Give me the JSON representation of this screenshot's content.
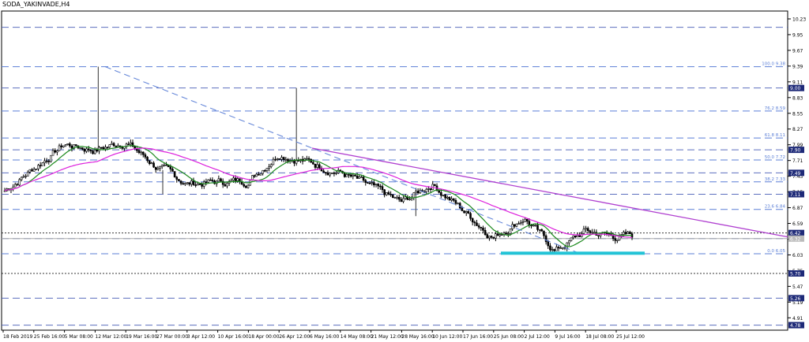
{
  "window_title": "SODA_YAKINVADE,H4",
  "chart_data": {
    "type": "candlestick",
    "symbol": "SODA_YAKINVADE",
    "timeframe": "H4",
    "ylim": [
      4.69,
      10.37
    ],
    "y_ticks": [
      "10.23",
      "9.95",
      "9.67",
      "9.39",
      "9.11",
      "8.83",
      "8.55",
      "8.27",
      "7.99",
      "7.71",
      "7.43",
      "7.15",
      "6.87",
      "6.59",
      "6.31",
      "6.03",
      "5.75",
      "5.47",
      "5.19",
      "4.91"
    ],
    "x_ticks": [
      "18 Feb 2019",
      "25 Feb 16:00",
      "5 Mar 08:00",
      "12 Mar 12:00",
      "19 Mar 16:00",
      "27 Mar 00:00",
      "3 Apr 12:00",
      "10 Apr 16:00",
      "18 Apr 00:00",
      "26 Apr 12:00",
      "6 May 16:00",
      "14 May 08:00",
      "21 May 12:00",
      "28 May 16:00",
      "10 Jun 12:00",
      "17 Jun 16:00",
      "25 Jun 08:00",
      "2 Jul 12:00",
      "9 Jul 16:00",
      "18 Jul 08:00",
      "25 Jul 12:00"
    ],
    "price_badges": [
      {
        "label": "9.00",
        "value": 9.0
      },
      {
        "label": "7.90",
        "value": 7.9
      },
      {
        "label": "7.49",
        "value": 7.49
      },
      {
        "label": "7.11",
        "value": 7.11
      },
      {
        "label": "6.42",
        "value": 6.42
      },
      {
        "label": "6.32",
        "value": 6.32
      },
      {
        "label": "5.70",
        "value": 5.7
      },
      {
        "label": "5.26",
        "value": 5.26
      },
      {
        "label": "4.78",
        "value": 4.78
      }
    ],
    "fibonacci": {
      "high": 9.38,
      "low": 6.05,
      "levels": [
        {
          "label": "100.0 9.38",
          "value": 9.38
        },
        {
          "label": "76.2 8.59",
          "value": 8.59
        },
        {
          "label": "61.8 8.11",
          "value": 8.11
        },
        {
          "label": "50.0 7.72",
          "value": 7.72
        },
        {
          "label": "38.2 7.33",
          "value": 7.33
        },
        {
          "label": "23.6 6.84",
          "value": 6.84
        },
        {
          "label": "0.0 6.05",
          "value": 6.05
        }
      ]
    },
    "horizontal_lines": [
      10.08,
      9.0,
      7.9,
      7.49,
      7.11,
      6.42,
      6.32,
      5.7,
      5.26,
      4.78
    ],
    "support_zone": {
      "value": 6.06,
      "color": "#22c3d6"
    },
    "colors": {
      "fib": "#5b7fd6",
      "ma_fast": "#1e8a1e",
      "ma_slow": "#dd22dd",
      "trendline": "#b040d0",
      "candles": "#000000",
      "axis": "#000000",
      "label_bg": "#1e2a78"
    },
    "candles": {
      "count": 300,
      "key_prices": [
        {
          "x_tick": "18 Feb 2019",
          "price": 7.15
        },
        {
          "x_tick": "5 Mar 08:00",
          "price": 8.0
        },
        {
          "x_tick": "12 Mar 12:00",
          "price": 7.9
        },
        {
          "x_tick": "19 Mar 16:00",
          "price": 8.05
        },
        {
          "x_tick": "27 Mar 00:00",
          "price": 7.6
        },
        {
          "x_tick": "3 Apr 12:00",
          "price": 7.3
        },
        {
          "x_tick": "18 Apr 00:00",
          "price": 7.35
        },
        {
          "x_tick": "26 Apr 12:00",
          "price": 7.85
        },
        {
          "x_tick": "14 May 08:00",
          "price": 7.5
        },
        {
          "x_tick": "28 May 16:00",
          "price": 6.95
        },
        {
          "x_tick": "10 Jun 12:00",
          "price": 7.3
        },
        {
          "x_tick": "25 Jun 08:00",
          "price": 6.35
        },
        {
          "x_tick": "2 Jul 12:00",
          "price": 6.7
        },
        {
          "x_tick": "9 Jul 16:00",
          "price": 6.1
        },
        {
          "x_tick": "18 Jul 08:00",
          "price": 6.45
        },
        {
          "x_tick": "25 Jul 12:00",
          "price": 6.36
        }
      ],
      "spikes": [
        {
          "x_tick": "12 Mar 12:00",
          "high": 9.38
        },
        {
          "x_tick": "26 Apr 12:00",
          "high": 9.0
        },
        {
          "x_tick": "27 Mar 00:00",
          "low": 7.11
        },
        {
          "x_tick": "28 May 16:00",
          "low": 6.72
        }
      ]
    }
  }
}
